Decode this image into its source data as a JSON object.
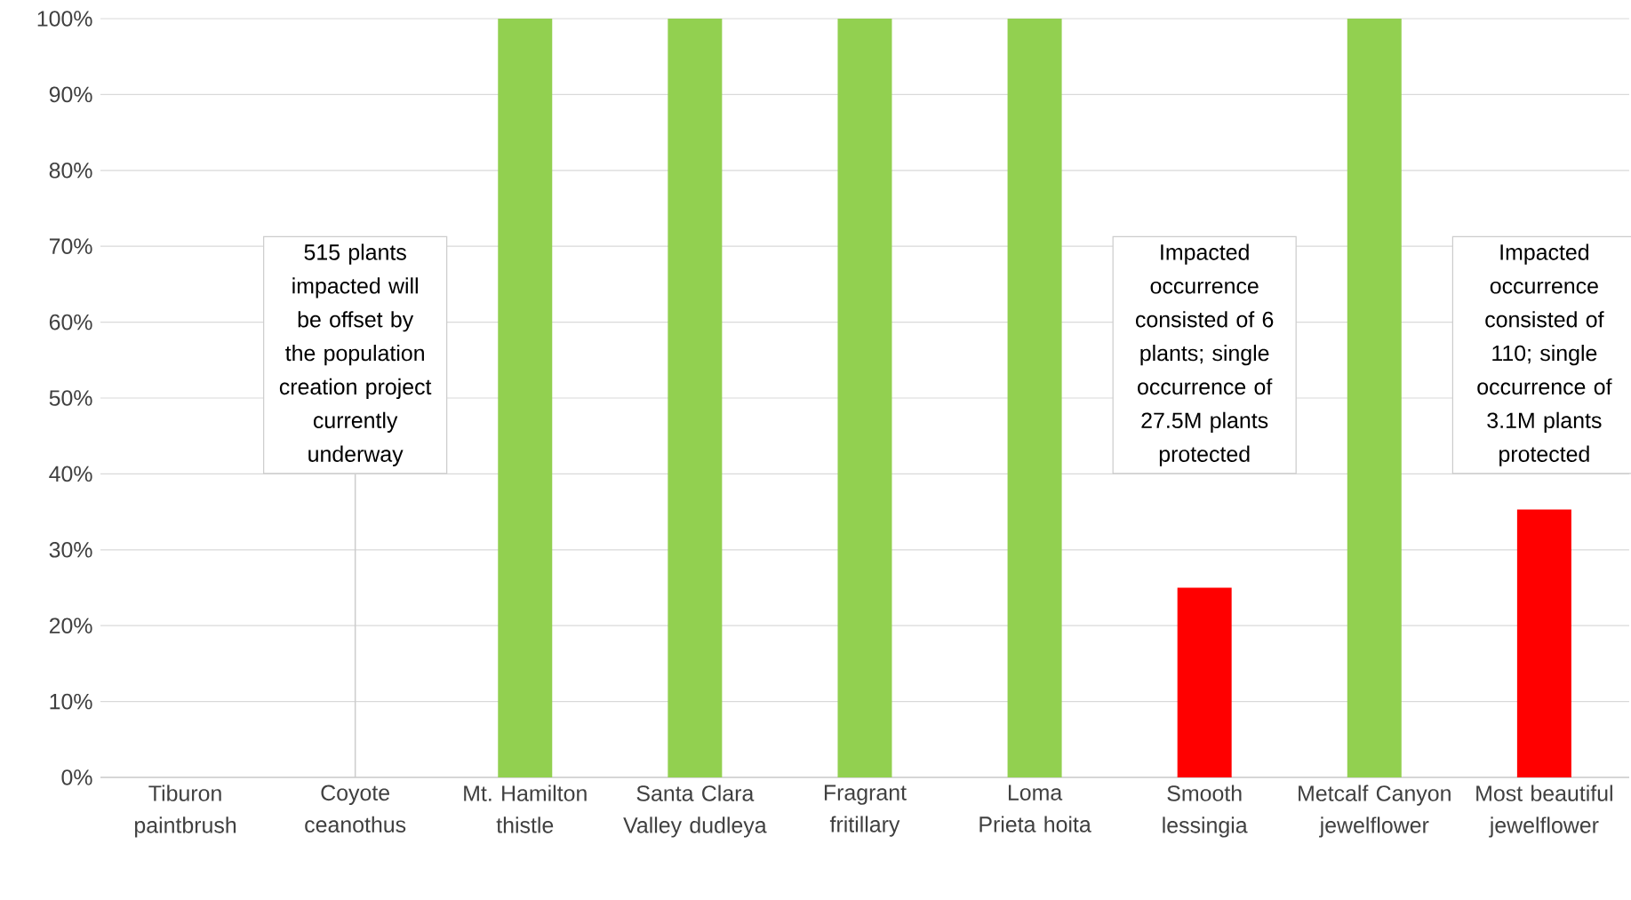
{
  "chart_data": {
    "type": "bar",
    "categories": [
      "Tiburon paintbrush",
      "Coyote ceanothus",
      "Mt. Hamilton thistle",
      "Santa Clara Valley dudleya",
      "Fragrant fritillary",
      "Loma Prieta hoita",
      "Smooth lessingia",
      "Metcalf Canyon jewelflower",
      "Most beautiful jewelflower"
    ],
    "values": [
      0,
      0,
      100,
      100,
      100,
      100,
      25,
      100,
      35.3
    ],
    "colors": [
      "#92d050",
      "#92d050",
      "#92d050",
      "#92d050",
      "#92d050",
      "#92d050",
      "#ff0000",
      "#92d050",
      "#ff0000"
    ],
    "ylim": [
      0,
      100
    ],
    "yticks": [
      {
        "value": 0,
        "label": "0%"
      },
      {
        "value": 10,
        "label": "10%"
      },
      {
        "value": 20,
        "label": "20%"
      },
      {
        "value": 30,
        "label": "30%"
      },
      {
        "value": 40,
        "label": "40%"
      },
      {
        "value": 50,
        "label": "50%"
      },
      {
        "value": 60,
        "label": "60%"
      },
      {
        "value": 70,
        "label": "70%"
      },
      {
        "value": 80,
        "label": "80%"
      },
      {
        "value": 90,
        "label": "90%"
      },
      {
        "value": 100,
        "label": "100%"
      }
    ],
    "grid": "y",
    "annotations": [
      {
        "text": "515 plants impacted will be offset by the population creation project currently underway",
        "x": "Coyote ceanothus",
        "y": 0
      },
      "Impacted occurrence consisted of 6 plants; single occurrence of 27.5M plants protected",
      "Impacted occurrence consisted of 110; single occurrence of 3.1M plants protected"
    ]
  }
}
